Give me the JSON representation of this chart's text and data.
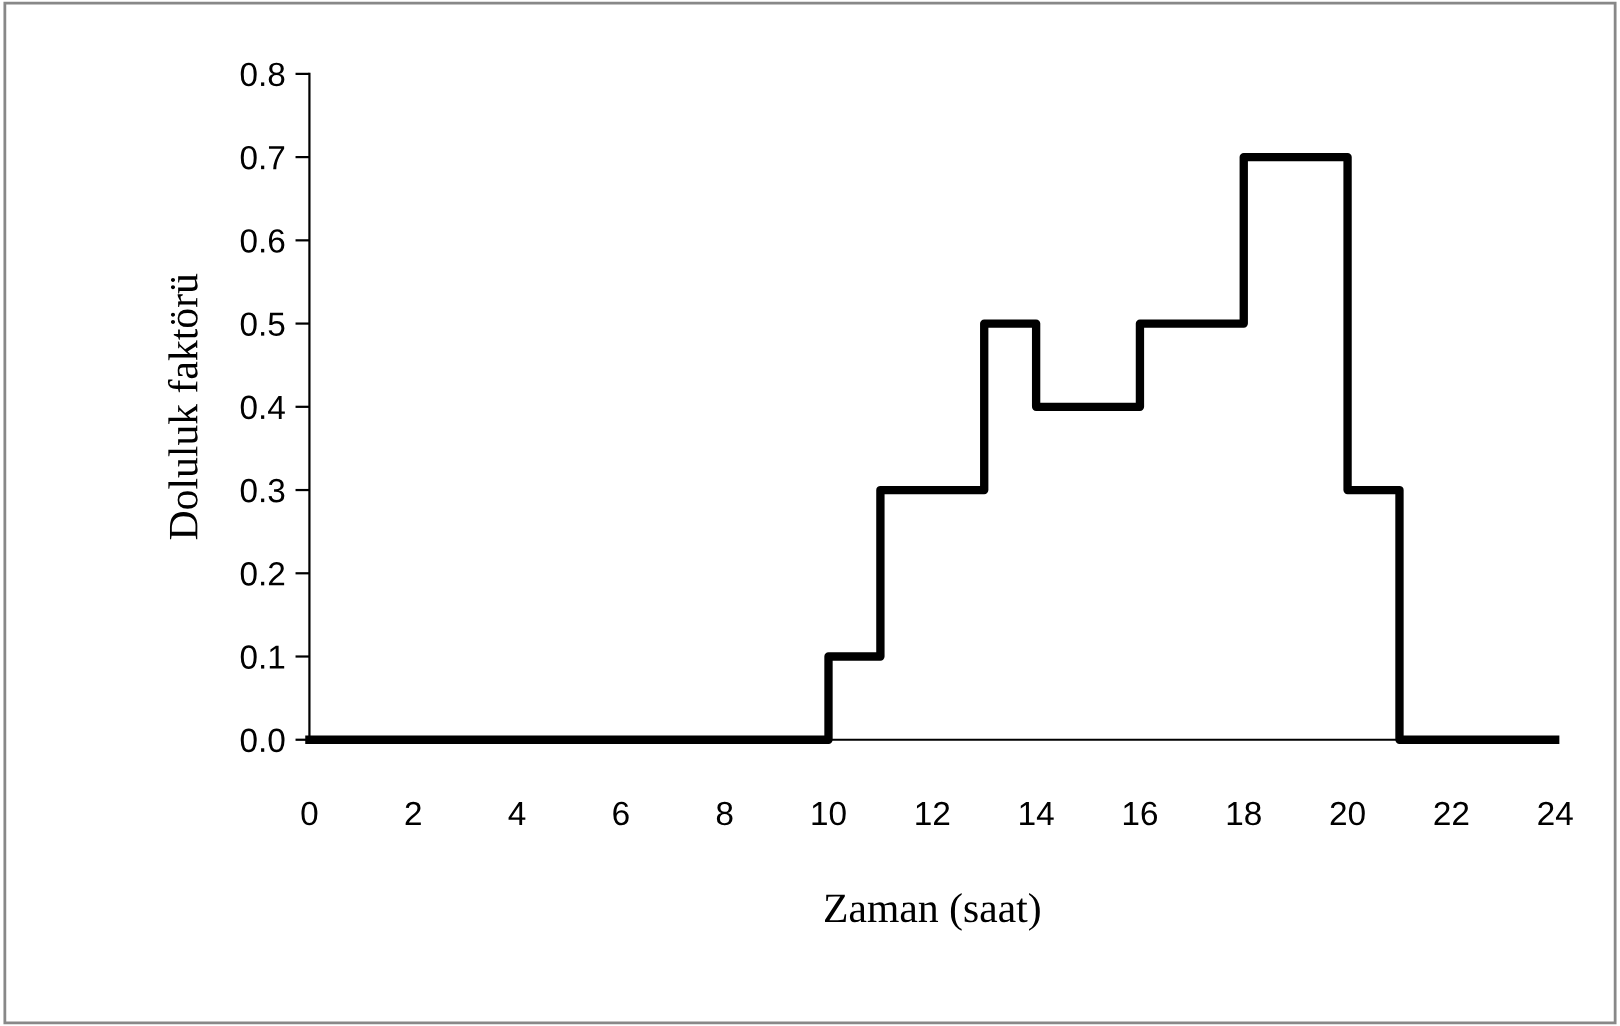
{
  "chart_data": {
    "type": "step",
    "xlabel": "Zaman (saat)",
    "ylabel": "Doluluk faktörü",
    "x": [
      0,
      10,
      11,
      13,
      14,
      16,
      18,
      20,
      21,
      24
    ],
    "series": [
      {
        "color": "#000000",
        "values": [
          0,
          0.1,
          0.3,
          0.5,
          0.4,
          0.5,
          0.7,
          0.3,
          0,
          0
        ]
      }
    ],
    "xlim": [
      0,
      24
    ],
    "xticks": [
      0,
      2,
      4,
      6,
      8,
      10,
      12,
      14,
      16,
      18,
      20,
      22,
      24
    ],
    "ylim": [
      0,
      0.8
    ],
    "yticks": [
      {
        "value": 0,
        "label": "0.0"
      },
      {
        "value": 0.1,
        "label": "0.1"
      },
      {
        "value": 0.2,
        "label": "0.2"
      },
      {
        "value": 0.3,
        "label": "0.3"
      },
      {
        "value": 0.4,
        "label": "0.4"
      },
      {
        "value": 0.5,
        "label": "0.5"
      },
      {
        "value": 0.6,
        "label": "0.6"
      },
      {
        "value": 0.7,
        "label": "0.7"
      },
      {
        "value": 0.8,
        "label": "0.8"
      }
    ],
    "grid": false,
    "marker": "none",
    "line_style": "solid"
  }
}
